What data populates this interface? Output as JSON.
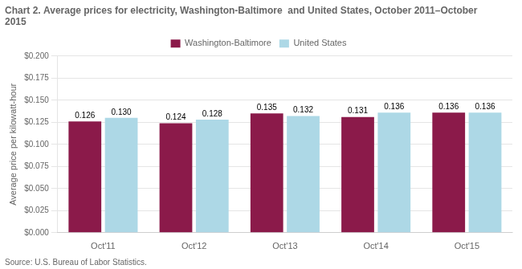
{
  "chart_data": {
    "type": "bar",
    "title": "Chart 2. Average prices for electricity, Washington-Baltimore  and United States, October 2011–October 2015",
    "ylabel": "Average price per kilowatt-hour",
    "source": "Source: U.S. Bureau of Labor Statistics.",
    "categories": [
      "Oct'11",
      "Oct'12",
      "Oct'13",
      "Oct'14",
      "Oct'15"
    ],
    "series": [
      {
        "name": "Washington-Baltimore",
        "color": "#8B1A4A",
        "values": [
          0.126,
          0.124,
          0.135,
          0.131,
          0.136
        ],
        "value_labels": [
          "0.126",
          "0.124",
          "0.135",
          "0.131",
          "0.136"
        ]
      },
      {
        "name": "United States",
        "color": "#ADD8E6",
        "values": [
          0.13,
          0.128,
          0.132,
          0.136,
          0.136
        ],
        "value_labels": [
          "0.130",
          "0.128",
          "0.132",
          "0.136",
          "0.136"
        ]
      }
    ],
    "ylim": [
      0,
      0.2
    ],
    "yticks": [
      {
        "value": 0,
        "label": "$0.000"
      },
      {
        "value": 0.025,
        "label": "$0.025"
      },
      {
        "value": 0.05,
        "label": "$0.050"
      },
      {
        "value": 0.075,
        "label": "$0.075"
      },
      {
        "value": 0.1,
        "label": "$0.100"
      },
      {
        "value": 0.125,
        "label": "$0.125"
      },
      {
        "value": 0.15,
        "label": "$0.150"
      },
      {
        "value": 0.175,
        "label": "$0.175"
      },
      {
        "value": 0.2,
        "label": "$0.200"
      }
    ],
    "grid": true,
    "legend": "top",
    "data_labels": true
  }
}
